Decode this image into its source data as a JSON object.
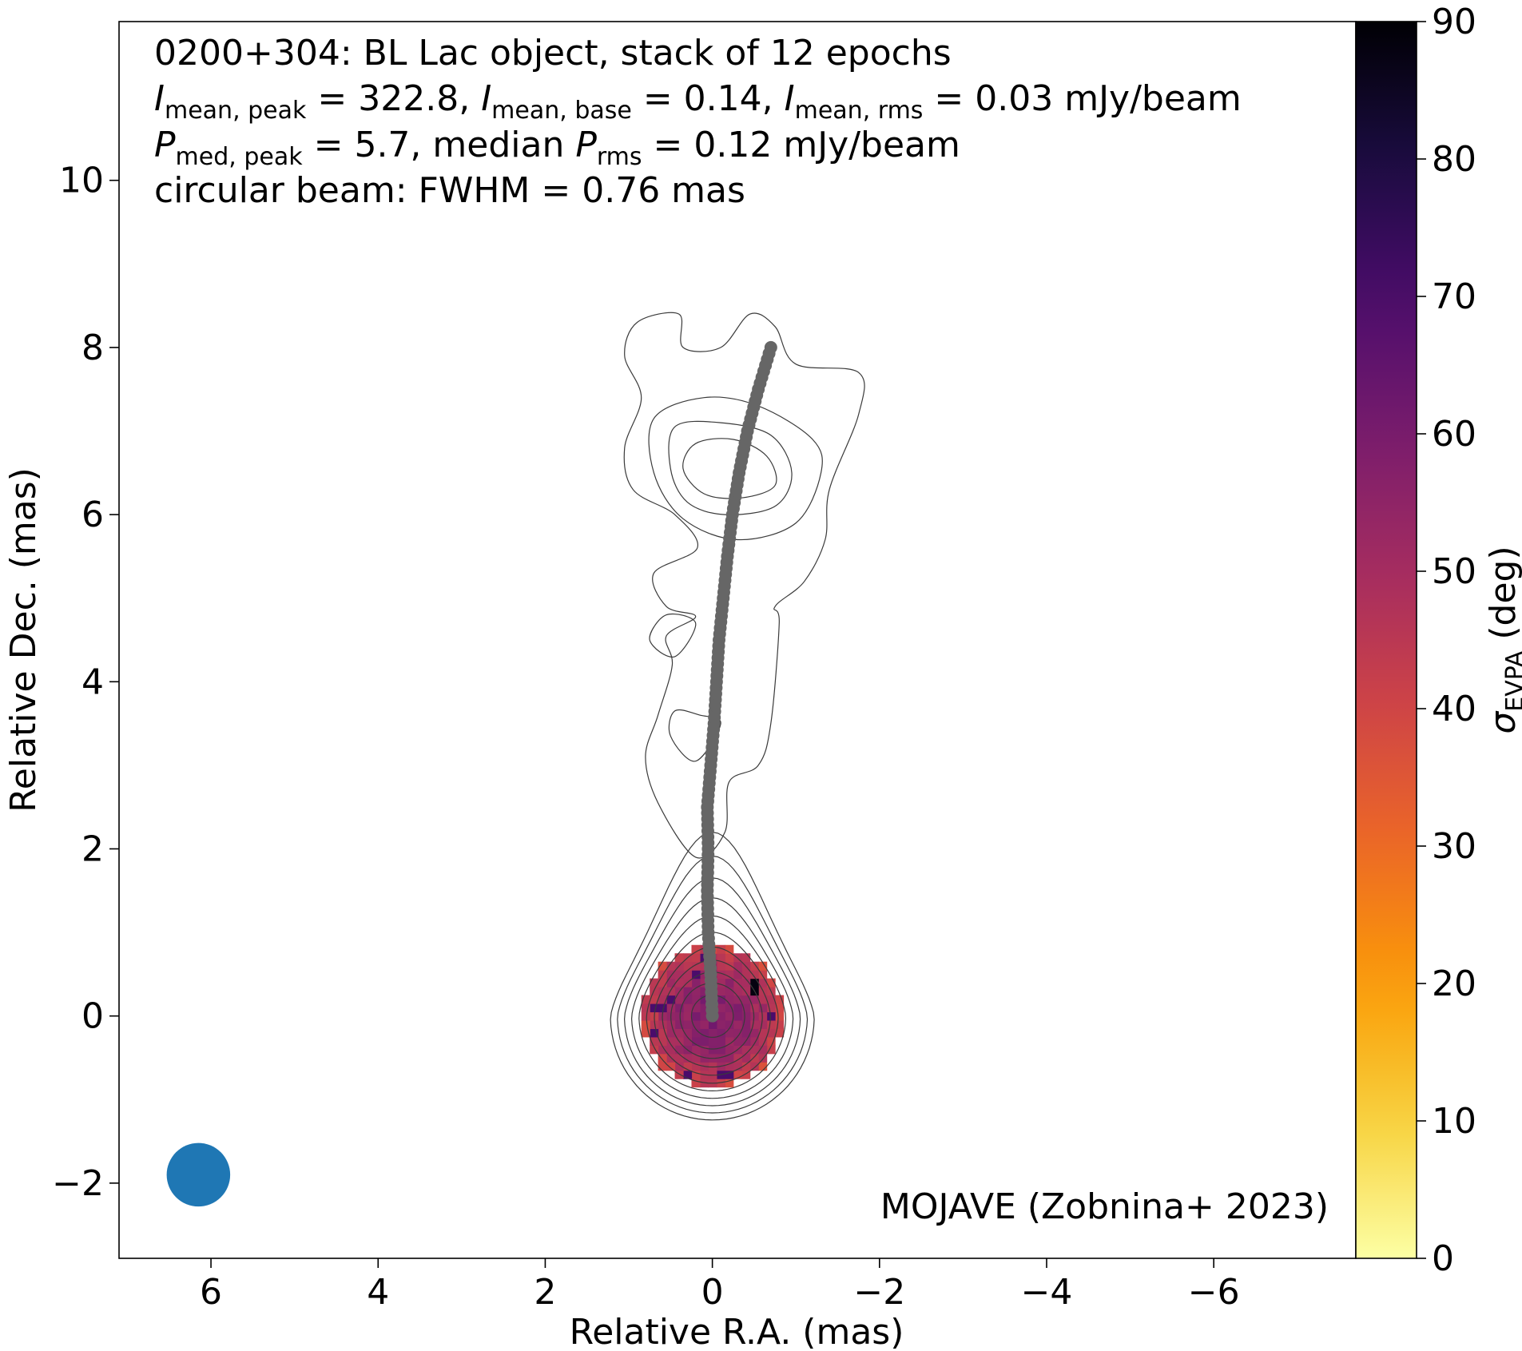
{
  "chart_data": {
    "type": "heatmap",
    "header_lines": [
      {
        "segments": [
          {
            "t": "0200+304: BL Lac object, stack of 12 epochs"
          }
        ]
      },
      {
        "segments": [
          {
            "t": "I",
            "italic": true
          },
          {
            "t": "mean, peak",
            "sub": true
          },
          {
            "t": " = 322.8, "
          },
          {
            "t": "I",
            "italic": true
          },
          {
            "t": "mean, base",
            "sub": true
          },
          {
            "t": " = 0.14, "
          },
          {
            "t": "I",
            "italic": true
          },
          {
            "t": "mean, rms",
            "sub": true
          },
          {
            "t": " = 0.03 mJy/beam"
          }
        ]
      },
      {
        "segments": [
          {
            "t": "P",
            "italic": true
          },
          {
            "t": "med, peak",
            "sub": true
          },
          {
            "t": " = 5.7, median "
          },
          {
            "t": "P",
            "italic": true
          },
          {
            "t": "rms",
            "sub": true
          },
          {
            "t": " = 0.12 mJy/beam"
          }
        ]
      },
      {
        "segments": [
          {
            "t": "circular beam: FWHM = 0.76 mas"
          }
        ]
      }
    ],
    "credit": "MOJAVE (Zobnina+ 2023)",
    "xlabel": "Relative R.A. (mas)",
    "ylabel": "Relative Dec. (mas)",
    "xlim": [
      7.1,
      -7.7
    ],
    "ylim": [
      -2.9,
      11.9
    ],
    "xticks": [
      6,
      4,
      2,
      0,
      -2,
      -4,
      -6
    ],
    "xtick_labels": [
      "6",
      "4",
      "2",
      "0",
      "−2",
      "−4",
      "−6"
    ],
    "yticks": [
      -2,
      0,
      2,
      4,
      6,
      8,
      10
    ],
    "ytick_labels": [
      "−2",
      "0",
      "2",
      "4",
      "6",
      "8",
      "10"
    ],
    "colorbar": {
      "colormap": "inferno_r",
      "range": [
        0,
        90
      ],
      "ticks": [
        0,
        10,
        20,
        30,
        40,
        50,
        60,
        70,
        80,
        90
      ],
      "tick_labels": [
        "0",
        "10",
        "20",
        "30",
        "40",
        "50",
        "60",
        "70",
        "80",
        "90"
      ],
      "label": {
        "symbol": "σ",
        "sub": "EVPA",
        "unit": " (deg)"
      }
    },
    "beam": {
      "ra": 6.15,
      "dec": -1.9,
      "fwhm": 0.76,
      "color": "#1f77b4"
    },
    "polarization_map": {
      "center": [
        0,
        0
      ],
      "outer_radius_mas": 0.85,
      "pixel_size_mas": 0.1,
      "center_value_deg": 58,
      "edge_value_deg": 40,
      "noisy_outlier_deg": 70,
      "high_outlier_deg": 88
    },
    "core_contours": {
      "center": [
        0,
        0
      ],
      "levels": 11,
      "innermost_radius_mas": 0.25,
      "outermost_radius_mas": 1.22,
      "outermost_north_extent_mas": 2.2
    },
    "jet_contours": [
      {
        "name": "outer",
        "points": [
          [
            0.2,
            1.9
          ],
          [
            0.65,
            2.55
          ],
          [
            0.8,
            3.1
          ],
          [
            0.65,
            3.6
          ],
          [
            0.48,
            4.2
          ],
          [
            0.55,
            4.55
          ],
          [
            0.2,
            4.78
          ],
          [
            0.55,
            4.9
          ],
          [
            0.7,
            5.3
          ],
          [
            0.18,
            5.6
          ],
          [
            0.45,
            6.0
          ],
          [
            0.95,
            6.3
          ],
          [
            1.05,
            6.8
          ],
          [
            0.85,
            7.4
          ],
          [
            1.05,
            7.9
          ],
          [
            0.9,
            8.3
          ],
          [
            0.4,
            8.4
          ],
          [
            0.35,
            8.0
          ],
          [
            -0.1,
            8.0
          ],
          [
            -0.45,
            8.4
          ],
          [
            -0.75,
            8.25
          ],
          [
            -1.0,
            7.8
          ],
          [
            -1.75,
            7.7
          ],
          [
            -1.75,
            7.2
          ],
          [
            -1.4,
            6.3
          ],
          [
            -1.35,
            5.7
          ],
          [
            -1.1,
            5.2
          ],
          [
            -0.75,
            4.9
          ],
          [
            -0.8,
            4.7
          ],
          [
            -0.7,
            3.5
          ],
          [
            -0.55,
            3.0
          ],
          [
            -0.2,
            2.8
          ],
          [
            -0.15,
            2.2
          ]
        ]
      },
      {
        "name": "pocket",
        "points": [
          [
            0.45,
            4.3
          ],
          [
            0.75,
            4.5
          ],
          [
            0.55,
            4.8
          ],
          [
            0.2,
            4.7
          ]
        ]
      },
      {
        "name": "mid",
        "points": [
          [
            0.2,
            3.05
          ],
          [
            0.5,
            3.35
          ],
          [
            0.45,
            3.65
          ],
          [
            0.15,
            3.6
          ],
          [
            -0.1,
            3.5
          ]
        ]
      },
      {
        "name": "knot1",
        "points": [
          [
            0.7,
            6.5
          ],
          [
            0.7,
            7.15
          ],
          [
            0.1,
            7.4
          ],
          [
            -0.55,
            7.3
          ],
          [
            -1.2,
            6.9
          ],
          [
            -1.3,
            6.5
          ],
          [
            -1.0,
            5.9
          ],
          [
            -0.3,
            5.7
          ],
          [
            0.35,
            5.95
          ]
        ]
      },
      {
        "name": "knot2",
        "points": [
          [
            0.5,
            6.55
          ],
          [
            0.45,
            7.05
          ],
          [
            -0.1,
            7.1
          ],
          [
            -0.7,
            6.95
          ],
          [
            -0.95,
            6.5
          ],
          [
            -0.75,
            6.1
          ],
          [
            -0.15,
            6.0
          ],
          [
            0.3,
            6.15
          ]
        ]
      },
      {
        "name": "knot3",
        "points": [
          [
            0.35,
            6.55
          ],
          [
            0.2,
            6.85
          ],
          [
            -0.25,
            6.9
          ],
          [
            -0.65,
            6.7
          ],
          [
            -0.75,
            6.35
          ],
          [
            -0.35,
            6.2
          ],
          [
            0.1,
            6.25
          ]
        ]
      }
    ],
    "ridge_line": {
      "color": "#666666",
      "points": [
        [
          0,
          0
        ],
        [
          0.02,
          0.5
        ],
        [
          0.05,
          1.0
        ],
        [
          0.06,
          1.5
        ],
        [
          0.05,
          2.0
        ],
        [
          0.06,
          2.5
        ],
        [
          0.02,
          3.0
        ],
        [
          -0.02,
          3.5
        ],
        [
          -0.05,
          4.0
        ],
        [
          -0.08,
          4.5
        ],
        [
          -0.13,
          5.0
        ],
        [
          -0.18,
          5.5
        ],
        [
          -0.24,
          6.0
        ],
        [
          -0.32,
          6.5
        ],
        [
          -0.42,
          7.0
        ],
        [
          -0.55,
          7.5
        ],
        [
          -0.7,
          8.0
        ]
      ]
    }
  }
}
